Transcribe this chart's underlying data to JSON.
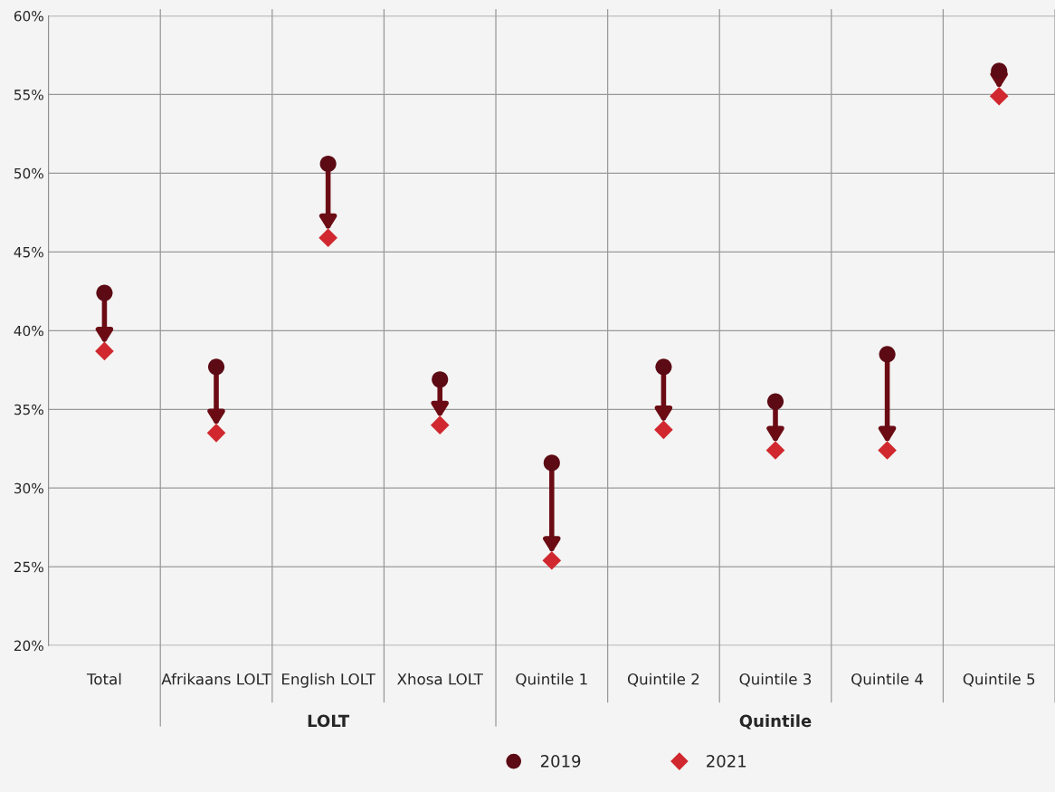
{
  "chart_data": {
    "type": "scatter",
    "categories": [
      "Total",
      "Afrikaans LOLT",
      "English LOLT",
      "Xhosa LOLT",
      "Quintile 1",
      "Quintile 2",
      "Quintile 3",
      "Quintile 4",
      "Quintile 5"
    ],
    "series": [
      {
        "name": "2019",
        "color": "#5c0a14",
        "marker": "circle",
        "values": [
          42.4,
          37.7,
          50.6,
          36.9,
          31.6,
          37.7,
          35.5,
          38.5,
          56.5
        ]
      },
      {
        "name": "2021",
        "color": "#d0282e",
        "marker": "diamond",
        "values": [
          38.7,
          33.5,
          45.9,
          34.0,
          25.4,
          33.7,
          32.4,
          32.4,
          54.9
        ]
      }
    ],
    "ylim": [
      20,
      60
    ],
    "yticks": [
      {
        "value": 20,
        "label": "20%"
      },
      {
        "value": 25,
        "label": "25%"
      },
      {
        "value": 30,
        "label": "30%"
      },
      {
        "value": 35,
        "label": "35%"
      },
      {
        "value": 40,
        "label": "40%"
      },
      {
        "value": 45,
        "label": "45%"
      },
      {
        "value": 50,
        "label": "50%"
      },
      {
        "value": 55,
        "label": "55%"
      },
      {
        "value": 60,
        "label": "60%"
      }
    ],
    "grid": "y",
    "legend": "bottom",
    "annotations": [
      "LOLT",
      "Quintile"
    ]
  }
}
